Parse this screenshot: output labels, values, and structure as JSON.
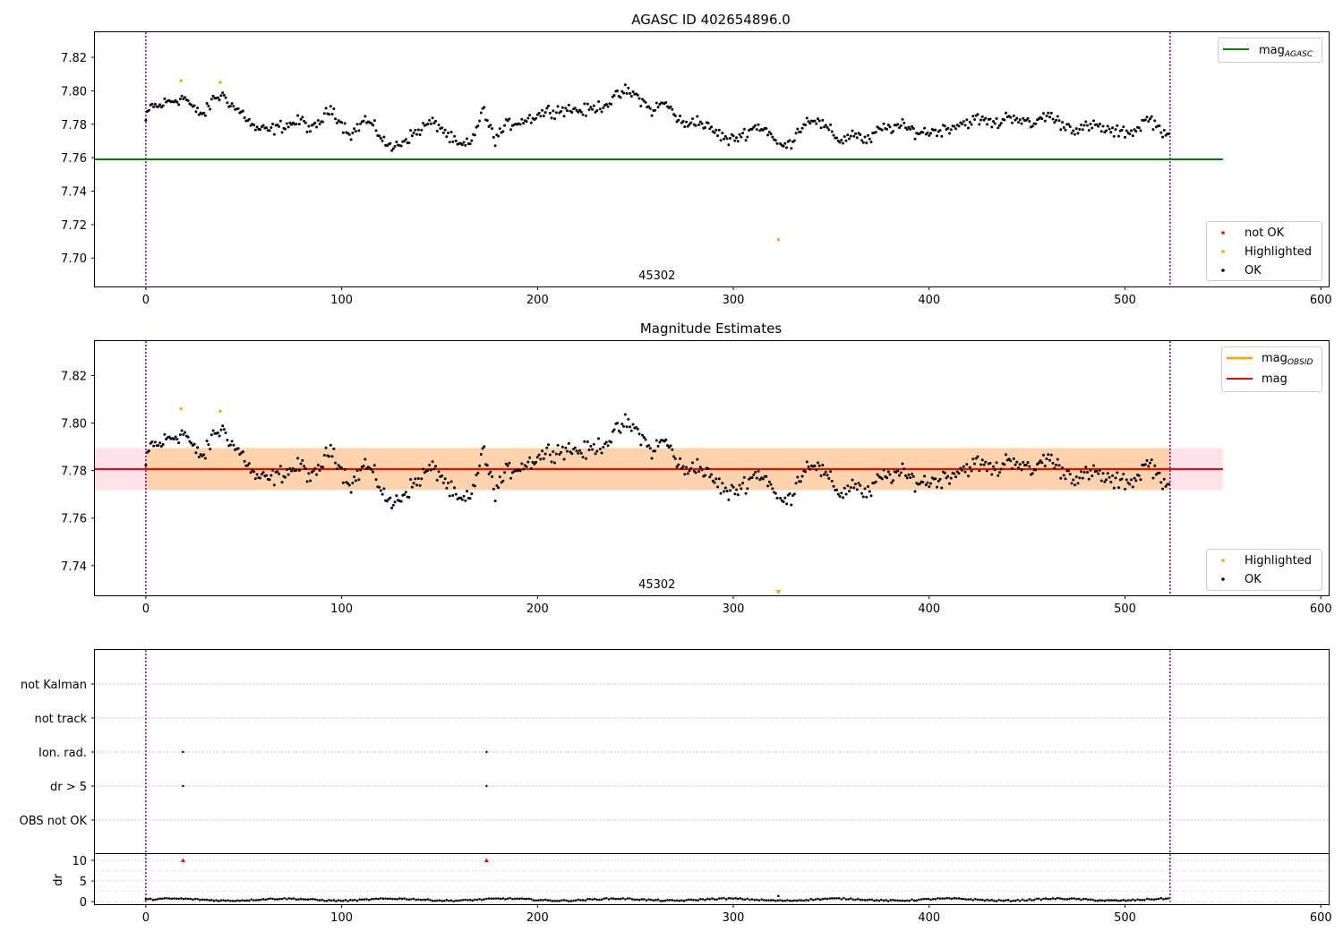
{
  "chart_data": [
    {
      "type": "scatter",
      "title": "AGASC ID 402654896.0",
      "xlim": [
        -26,
        604
      ],
      "ylim": [
        7.683,
        7.835
      ],
      "x_ticks": [
        0,
        100,
        200,
        300,
        400,
        500,
        600
      ],
      "y_ticks": [
        7.7,
        7.72,
        7.74,
        7.76,
        7.78,
        7.8,
        7.82
      ],
      "obsid_label": "45302",
      "obsid_label_x": 261,
      "obsid_boundaries": [
        0,
        523
      ],
      "reference_lines": [
        {
          "name": "mag$_{AGASC}$",
          "label_main": "mag",
          "label_sub": "AGASC",
          "y": 7.759,
          "x_range": [
            -26,
            550
          ],
          "color": "#008000"
        }
      ],
      "series": [
        {
          "name": "not OK",
          "color": "#ff0000",
          "points": []
        },
        {
          "name": "Highlighted",
          "color": "#ffa500",
          "points": [
            [
              18,
              7.806
            ],
            [
              38,
              7.805
            ],
            [
              323,
              7.711
            ]
          ]
        },
        {
          "name": "OK",
          "color": "#000000",
          "generator": "ok_track"
        }
      ],
      "legend": {
        "lines": "top-right",
        "points": "bottom-right"
      }
    },
    {
      "type": "scatter",
      "title": "Magnitude Estimates",
      "xlim": [
        -26,
        604
      ],
      "ylim": [
        7.7275,
        7.8345
      ],
      "x_ticks": [
        0,
        100,
        200,
        300,
        400,
        500,
        600
      ],
      "y_ticks": [
        7.74,
        7.76,
        7.78,
        7.8,
        7.82
      ],
      "obsid_label": "45302",
      "obsid_label_x": 261,
      "obsid_boundaries": [
        0,
        523
      ],
      "bands": [
        {
          "y_range": [
            7.7718,
            7.7895
          ],
          "x_range": [
            -26,
            550
          ],
          "color": "#ffc0cb",
          "opacity": 0.45
        },
        {
          "y_range": [
            7.7718,
            7.7895
          ],
          "x_range": [
            0,
            523
          ],
          "color": "#ffa500",
          "opacity": 0.25
        }
      ],
      "reference_lines": [
        {
          "name": "mag$_{OBSID}$",
          "label_main": "mag",
          "label_sub": "OBSID",
          "y": 7.7806,
          "x_range": [
            0,
            523
          ],
          "color": "#ffa500"
        },
        {
          "name": "mag",
          "label_main": "mag",
          "label_sub": "",
          "y": 7.7806,
          "x_range": [
            -26,
            550
          ],
          "color": "#ff0000"
        }
      ],
      "out_of_range_marker": {
        "x": 323,
        "color": "#ffa500"
      },
      "series": [
        {
          "name": "Highlighted",
          "color": "#ffa500",
          "points": [
            [
              18,
              7.806
            ],
            [
              38,
              7.805
            ]
          ]
        },
        {
          "name": "OK",
          "color": "#000000",
          "generator": "ok_track"
        }
      ],
      "legend": {
        "lines": "top-right",
        "points": "bottom-right"
      }
    },
    {
      "type": "scatter",
      "title": "",
      "xlim": [
        -26,
        604
      ],
      "categories": [
        "OBS not OK",
        "dr > 5",
        "Ion. rad.",
        "not track",
        "not Kalman"
      ],
      "flag_points": [
        {
          "category": "Ion. rad.",
          "x": [
            19,
            174
          ]
        },
        {
          "category": "dr > 5",
          "x": [
            19,
            174
          ]
        }
      ],
      "obsid_boundaries": [
        0,
        523
      ],
      "grid": "horizontal dotted"
    },
    {
      "type": "scatter",
      "title": "",
      "ylabel": "dr",
      "xlim": [
        -26,
        604
      ],
      "ylim": [
        -0.6,
        11.5
      ],
      "x_ticks": [
        0,
        100,
        200,
        300,
        400,
        500,
        600
      ],
      "y_ticks": [
        0,
        5,
        10
      ],
      "clipped_points": [
        {
          "x": 19,
          "y": 10
        },
        {
          "x": 174,
          "y": 10
        }
      ],
      "outlier_points": [
        {
          "x": 323,
          "y": 1.4
        }
      ],
      "typical_dr_range": [
        0.1,
        0.9
      ],
      "obsid_boundaries": [
        0,
        523
      ]
    }
  ]
}
